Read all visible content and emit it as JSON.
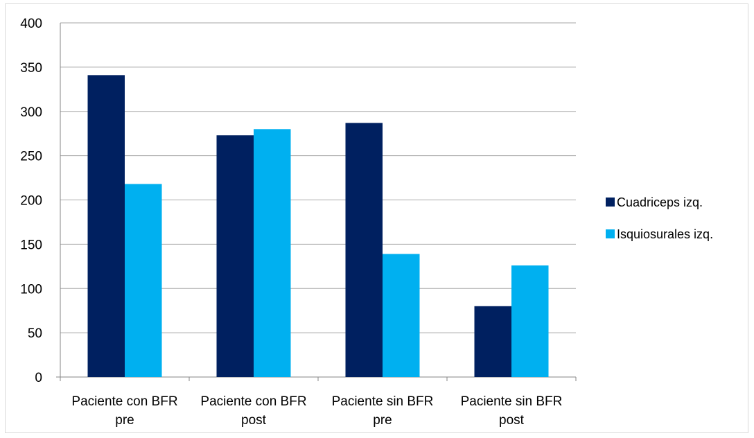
{
  "chart_data": {
    "type": "bar",
    "categories": [
      [
        "Paciente con BFR",
        "pre"
      ],
      [
        "Paciente con BFR",
        "post"
      ],
      [
        "Paciente sin BFR",
        "pre"
      ],
      [
        "Paciente sin BFR",
        "post"
      ]
    ],
    "series": [
      {
        "name": "Cuadriceps izq.",
        "color": "#002060",
        "values": [
          341,
          273,
          287,
          80
        ]
      },
      {
        "name": "Isquiosurales izq.",
        "color": "#00B0F0",
        "values": [
          218,
          280,
          139,
          126
        ]
      }
    ],
    "ylim": [
      0,
      400
    ],
    "yticks": [
      0,
      50,
      100,
      150,
      200,
      250,
      300,
      350,
      400
    ],
    "grid": true,
    "legend": "right",
    "gridline_color": "#a6a6a6",
    "axis_color": "#868686"
  }
}
